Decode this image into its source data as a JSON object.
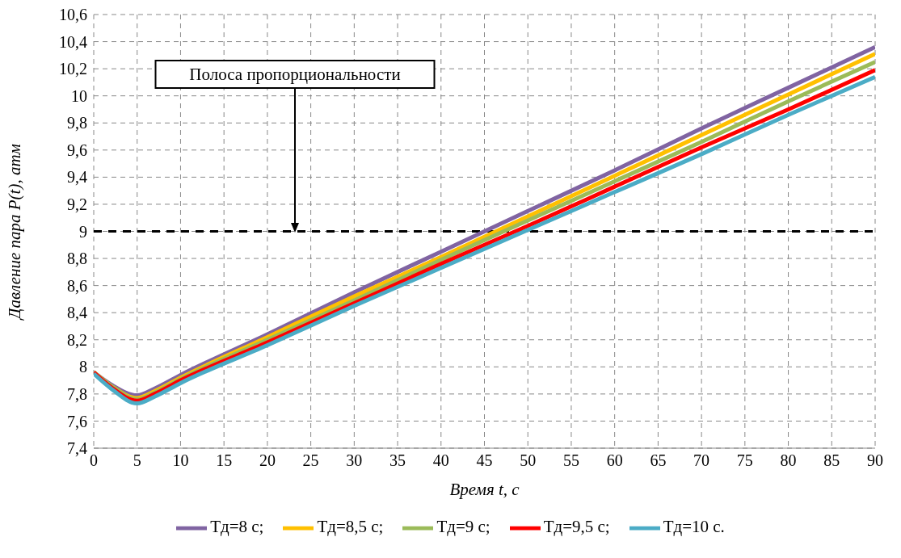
{
  "chart_data": {
    "type": "line",
    "xlabel": "Время t, с",
    "ylabel": "Давление пара P(t), атм",
    "x": [
      0,
      2,
      5,
      7,
      10,
      20,
      30,
      40,
      50,
      60,
      70,
      80,
      90
    ],
    "series": [
      {
        "name": "Тд=8 с;",
        "color": "#8064a2",
        "values": [
          7.96,
          7.87,
          7.79,
          7.84,
          7.94,
          8.24,
          8.55,
          8.85,
          9.15,
          9.45,
          9.76,
          10.06,
          10.36
        ]
      },
      {
        "name": "Тд=8,5 с;",
        "color": "#ffc000",
        "values": [
          7.96,
          7.86,
          7.77,
          7.82,
          7.92,
          8.22,
          8.52,
          8.81,
          9.11,
          9.41,
          9.71,
          10.01,
          10.31
        ]
      },
      {
        "name": "Тд=9 с;",
        "color": "#9bbb59",
        "values": [
          7.96,
          7.86,
          7.76,
          7.81,
          7.91,
          8.2,
          8.49,
          8.79,
          9.08,
          9.37,
          9.66,
          9.96,
          10.25
        ]
      },
      {
        "name": "Тд=9,5 с;",
        "color": "#ff0000",
        "values": [
          7.96,
          7.85,
          7.75,
          7.8,
          7.9,
          8.18,
          8.47,
          8.76,
          9.04,
          9.33,
          9.62,
          9.9,
          10.19
        ]
      },
      {
        "name": "Тд=10 с.",
        "color": "#4bacc6",
        "values": [
          7.95,
          7.84,
          7.73,
          7.78,
          7.88,
          8.16,
          8.45,
          8.73,
          9.01,
          9.29,
          9.57,
          9.86,
          10.14
        ]
      }
    ],
    "xlim": [
      0,
      90
    ],
    "xticks": [
      0,
      5,
      10,
      15,
      20,
      25,
      30,
      35,
      40,
      45,
      50,
      55,
      60,
      65,
      70,
      75,
      80,
      85,
      90
    ],
    "ylim": [
      7.4,
      10.6
    ],
    "yticks": [
      {
        "value": 7.4,
        "label": "7,4"
      },
      {
        "value": 7.6,
        "label": "7,6"
      },
      {
        "value": 7.8,
        "label": "7,8"
      },
      8,
      {
        "value": 8.2,
        "label": "8,2"
      },
      {
        "value": 8.4,
        "label": "8,4"
      },
      {
        "value": 8.6,
        "label": "8,6"
      },
      {
        "value": 8.8,
        "label": "8,8"
      },
      9,
      {
        "value": 9.2,
        "label": "9,2"
      },
      {
        "value": 9.4,
        "label": "9,4"
      },
      {
        "value": 9.6,
        "label": "9,6"
      },
      {
        "value": 9.8,
        "label": "9,8"
      },
      10,
      {
        "value": 10.2,
        "label": "10,2"
      },
      {
        "value": 10.4,
        "label": "10,4"
      },
      {
        "value": 10.6,
        "label": "10,6"
      }
    ],
    "ref_lines": [
      {
        "axis": "y",
        "value": 9,
        "color": "#000000",
        "line_style": "dashed"
      }
    ],
    "annotations": [
      "Полоса пропорциональности"
    ],
    "grid": true,
    "legend": "bottom",
    "marker": "none",
    "line_style": "solid"
  }
}
